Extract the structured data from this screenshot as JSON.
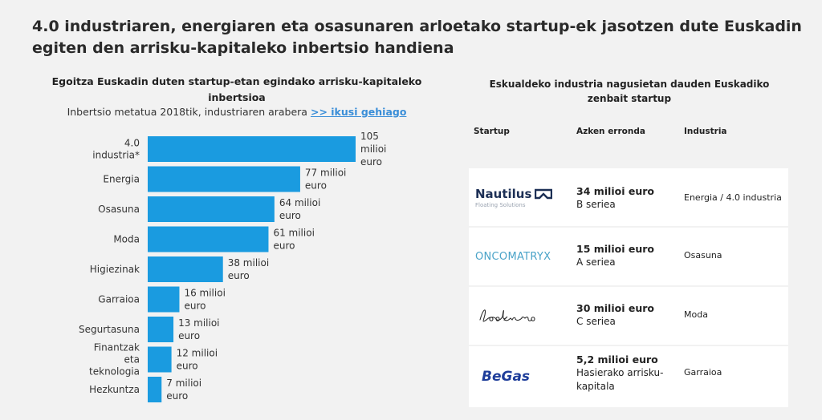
{
  "main_title": "4.0 industriaren, energiaren eta osasunaren arloetako startup-ek jasotzen dute Euskadin egiten den arrisku-kapitaleko inbertsio handiena",
  "chart_data": {
    "type": "bar",
    "orientation": "horizontal",
    "title": "Egoitza Euskadin duten startup-etan egindako arrisku-kapitaleko inbertsioa",
    "subtitle": "Inbertsio metatua 2018tik, industriaren arabera",
    "subtitle_link": ">> ikusi gehiago",
    "categories": [
      "4.0 industria*",
      "Energia",
      "Osasuna",
      "Moda",
      "Higiezinak",
      "Garraioa",
      "Segurtasuna",
      "Finantzak eta teknologia",
      "Hezkuntza"
    ],
    "values": [
      105,
      77,
      64,
      61,
      38,
      16,
      13,
      12,
      7
    ],
    "unit": "milioi euro",
    "bar_color": "#1a9be0",
    "xlim": [
      0,
      105
    ],
    "grid": false,
    "legend": "none"
  },
  "table": {
    "title": "Eskualdeko industria nagusietan dauden Euskadiko zenbait startup",
    "headers": {
      "startup": "Startup",
      "round": "Azken erronda",
      "industry": "Industria"
    },
    "rows": [
      {
        "logo_text": "Nautilus",
        "logo_sub": "Floating Solutions",
        "logo_icon": "nautilus-logo-icon",
        "amount": "34 milioi euro",
        "series": "B seriea",
        "industry": "Energia / 4.0 industria"
      },
      {
        "logo_text": "ONCOMATRYX",
        "logo_icon": "oncomatryx-logo-icon",
        "amount": "15 milioi euro",
        "series": "A seriea",
        "industry": "Osasuna"
      },
      {
        "logo_text": "Lookiero",
        "logo_icon": "lookiero-logo-icon",
        "amount": "30 milioi euro",
        "series": "C seriea",
        "industry": "Moda"
      },
      {
        "logo_text": "BeGas",
        "logo_icon": "begas-logo-icon",
        "amount": "5,2 milioi euro",
        "series": "Hasierako arrisku-kapitala",
        "industry": "Garraioa"
      }
    ]
  },
  "colors": {
    "bar": "#1a9be0",
    "link": "#3a8ed8",
    "background": "#f2f2f2",
    "nautilus_navy": "#1c2f55",
    "oncomatryx_blue": "#4aa3c8",
    "begas_blue": "#1e3d9a"
  }
}
